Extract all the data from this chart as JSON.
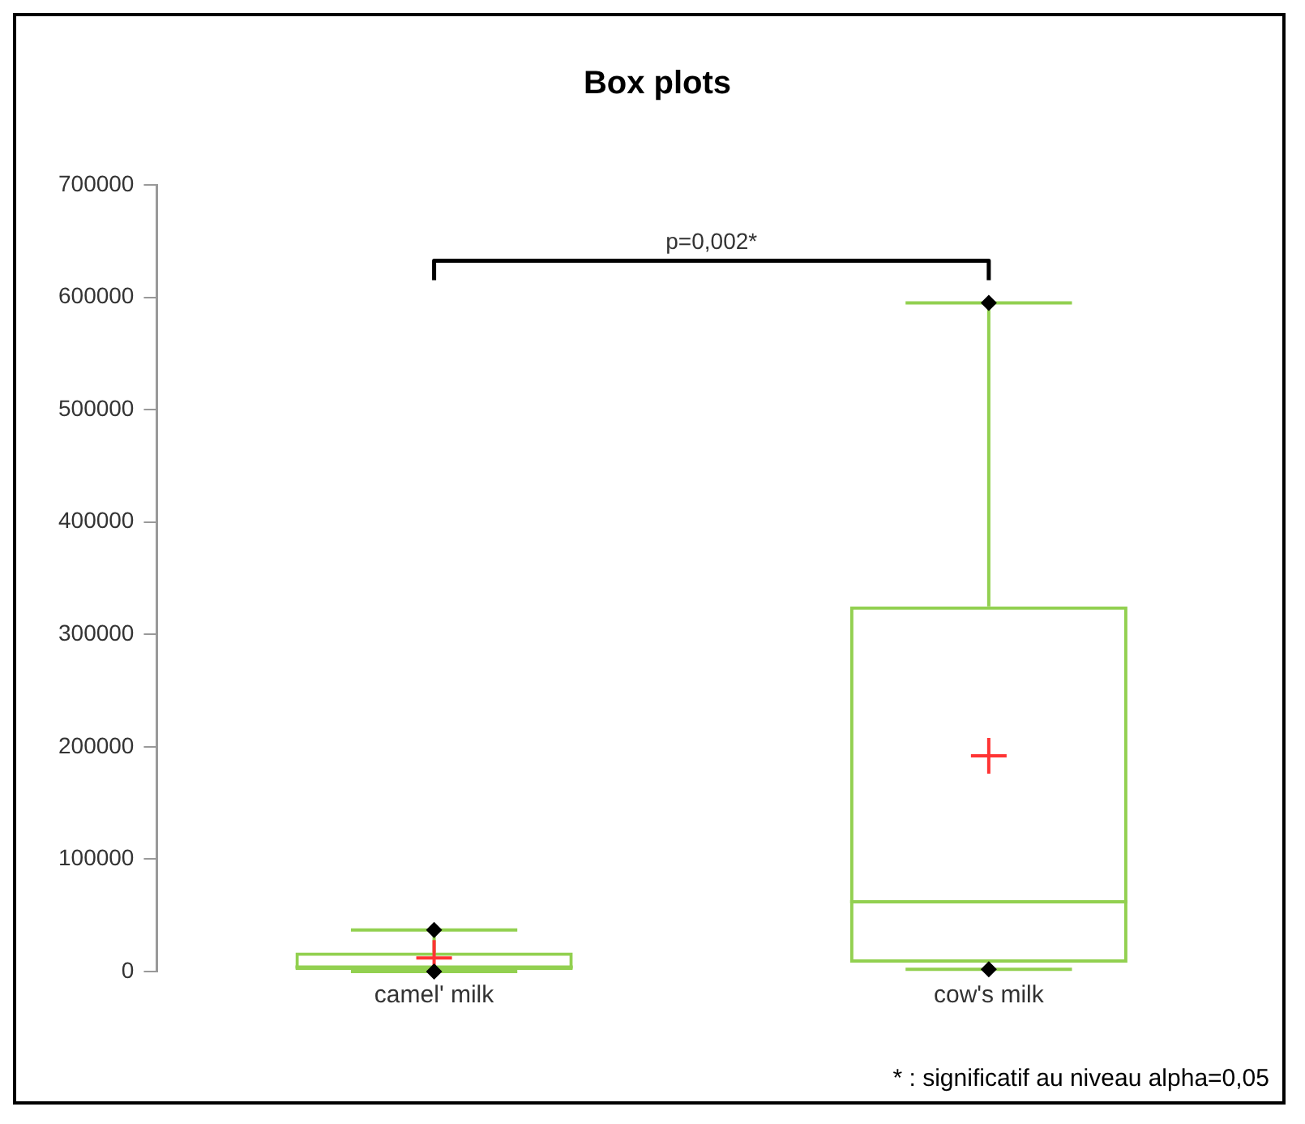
{
  "chart_data": {
    "type": "box",
    "title": "Box plots",
    "categories": [
      "camel' milk",
      "cow's milk"
    ],
    "color": "#92d050",
    "boxes": [
      {
        "low": 0,
        "q1": 1500,
        "median": 4000,
        "q3": 17000,
        "high": 37000,
        "mean": 12000
      },
      {
        "low": 2000,
        "q1": 8000,
        "median": 62000,
        "q3": 325000,
        "high": 595000,
        "mean": 192000
      }
    ],
    "series": [
      {
        "type": "scatter",
        "color": "#000000",
        "marker": "diamond",
        "x": [
          "camel' milk",
          "camel' milk",
          "cow's milk",
          "cow's milk"
        ],
        "values": [
          0,
          37000,
          2000,
          595000
        ]
      }
    ],
    "ylim": [
      0,
      700000
    ],
    "yticks": [
      0,
      100000,
      200000,
      300000,
      400000,
      500000,
      600000,
      700000
    ],
    "grid": false,
    "legend": false,
    "annotations": [
      "p=0,002*",
      "* : significatif au niveau alpha=0,05"
    ]
  }
}
